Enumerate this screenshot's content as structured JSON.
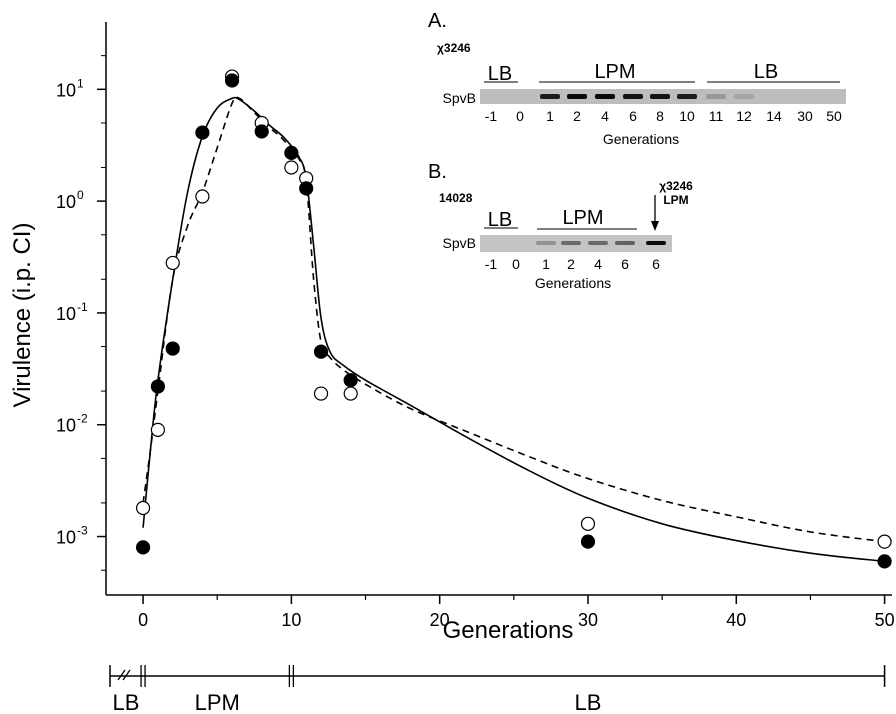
{
  "chart_data": {
    "type": "scatter",
    "xlabel": "Generations",
    "ylabel": "Virulence (i.p. CI)",
    "xlim": [
      -2.5,
      50.5
    ],
    "ylim": [
      0.0003,
      40
    ],
    "yscale": "log",
    "xticks": [
      0,
      10,
      20,
      30,
      40,
      50
    ],
    "xtick_labels": [
      "0",
      "10",
      "20",
      "30",
      "40",
      "50"
    ],
    "ytick_exponents": [
      -3,
      -2,
      -1,
      0,
      1
    ],
    "ytick_base": "10",
    "grid": false,
    "series": [
      {
        "marker": "filled",
        "points": [
          [
            0,
            0.0008
          ],
          [
            1,
            0.022
          ],
          [
            2,
            0.048
          ],
          [
            4,
            4.1
          ],
          [
            6,
            12
          ],
          [
            8,
            4.2
          ],
          [
            10,
            2.7
          ],
          [
            11,
            1.3
          ],
          [
            12,
            0.045
          ],
          [
            14,
            0.025
          ],
          [
            30,
            0.0009
          ],
          [
            50,
            0.0006
          ]
        ],
        "fit_line": "solid",
        "fit": [
          [
            0,
            0.0012
          ],
          [
            0.5,
            0.006
          ],
          [
            1,
            0.025
          ],
          [
            2,
            0.2
          ],
          [
            3,
            1.2
          ],
          [
            4,
            3.8
          ],
          [
            5,
            6.8
          ],
          [
            6,
            8.3
          ],
          [
            6.5,
            8.1
          ],
          [
            7.5,
            6.4
          ],
          [
            8.5,
            4.8
          ],
          [
            9.5,
            3.7
          ],
          [
            10.5,
            2.5
          ],
          [
            11,
            1.6
          ],
          [
            11.5,
            0.4
          ],
          [
            12,
            0.09
          ],
          [
            12.6,
            0.045
          ],
          [
            13.5,
            0.034
          ],
          [
            15,
            0.025
          ],
          [
            18,
            0.015
          ],
          [
            22,
            0.0075
          ],
          [
            26,
            0.0039
          ],
          [
            30,
            0.0022
          ],
          [
            35,
            0.0013
          ],
          [
            40,
            0.00092
          ],
          [
            45,
            0.00071
          ],
          [
            50,
            0.0006
          ]
        ]
      },
      {
        "marker": "open",
        "points": [
          [
            0,
            0.0018
          ],
          [
            1,
            0.009
          ],
          [
            2,
            0.28
          ],
          [
            4,
            1.1
          ],
          [
            6,
            13
          ],
          [
            8,
            5
          ],
          [
            10,
            2
          ],
          [
            11,
            1.6
          ],
          [
            12,
            0.019
          ],
          [
            14,
            0.019
          ],
          [
            30,
            0.0013
          ],
          [
            50,
            0.0009
          ]
        ],
        "fit_line": "dashed",
        "fit": [
          [
            0,
            0.002
          ],
          [
            0.5,
            0.006
          ],
          [
            1,
            0.02
          ],
          [
            2,
            0.2
          ],
          [
            3,
            0.6
          ],
          [
            4,
            1.2
          ],
          [
            5,
            3
          ],
          [
            6,
            7.5
          ],
          [
            6.5,
            8.3
          ],
          [
            7.5,
            6.2
          ],
          [
            8.5,
            4.6
          ],
          [
            9.5,
            3.5
          ],
          [
            10.5,
            2.4
          ],
          [
            11,
            1.5
          ],
          [
            11.5,
            0.2
          ],
          [
            12,
            0.055
          ],
          [
            12.6,
            0.04
          ],
          [
            13.5,
            0.031
          ],
          [
            15,
            0.023
          ],
          [
            18,
            0.014
          ],
          [
            22,
            0.0085
          ],
          [
            26,
            0.0052
          ],
          [
            30,
            0.0033
          ],
          [
            35,
            0.0021
          ],
          [
            40,
            0.0015
          ],
          [
            45,
            0.0011
          ],
          [
            50,
            0.0009
          ]
        ]
      }
    ],
    "phase_bar": [
      {
        "label": "LB",
        "from": -2.5,
        "to": 0
      },
      {
        "label": "LPM",
        "from": 0,
        "to": 10
      },
      {
        "label": "LB",
        "from": 10,
        "to": 50
      }
    ]
  },
  "insets": {
    "a": {
      "panel_label": "A.",
      "strain": "χ3246",
      "band_label": "SpvB",
      "groups": [
        "LB",
        "LPM",
        "LB"
      ],
      "lanes": [
        "-1",
        "0",
        "1",
        "2",
        "4",
        "6",
        "8",
        "10",
        "11",
        "12",
        "14",
        "30",
        "50"
      ],
      "band_intensity": [
        0,
        0,
        0.85,
        0.95,
        0.95,
        0.9,
        0.9,
        0.85,
        0.2,
        0.12,
        0,
        0,
        0
      ],
      "xlabel": "Generations"
    },
    "b": {
      "panel_label": "B.",
      "strain": "14028",
      "band_label": "SpvB",
      "groups": [
        "LB",
        "LPM"
      ],
      "lanes": [
        "-1",
        "0",
        "1",
        "2",
        "4",
        "6",
        "6"
      ],
      "band_intensity": [
        0,
        0,
        0.25,
        0.45,
        0.45,
        0.5,
        0.95
      ],
      "xlabel": "Generations",
      "control_strain": "χ3246",
      "control_medium": "LPM"
    }
  }
}
